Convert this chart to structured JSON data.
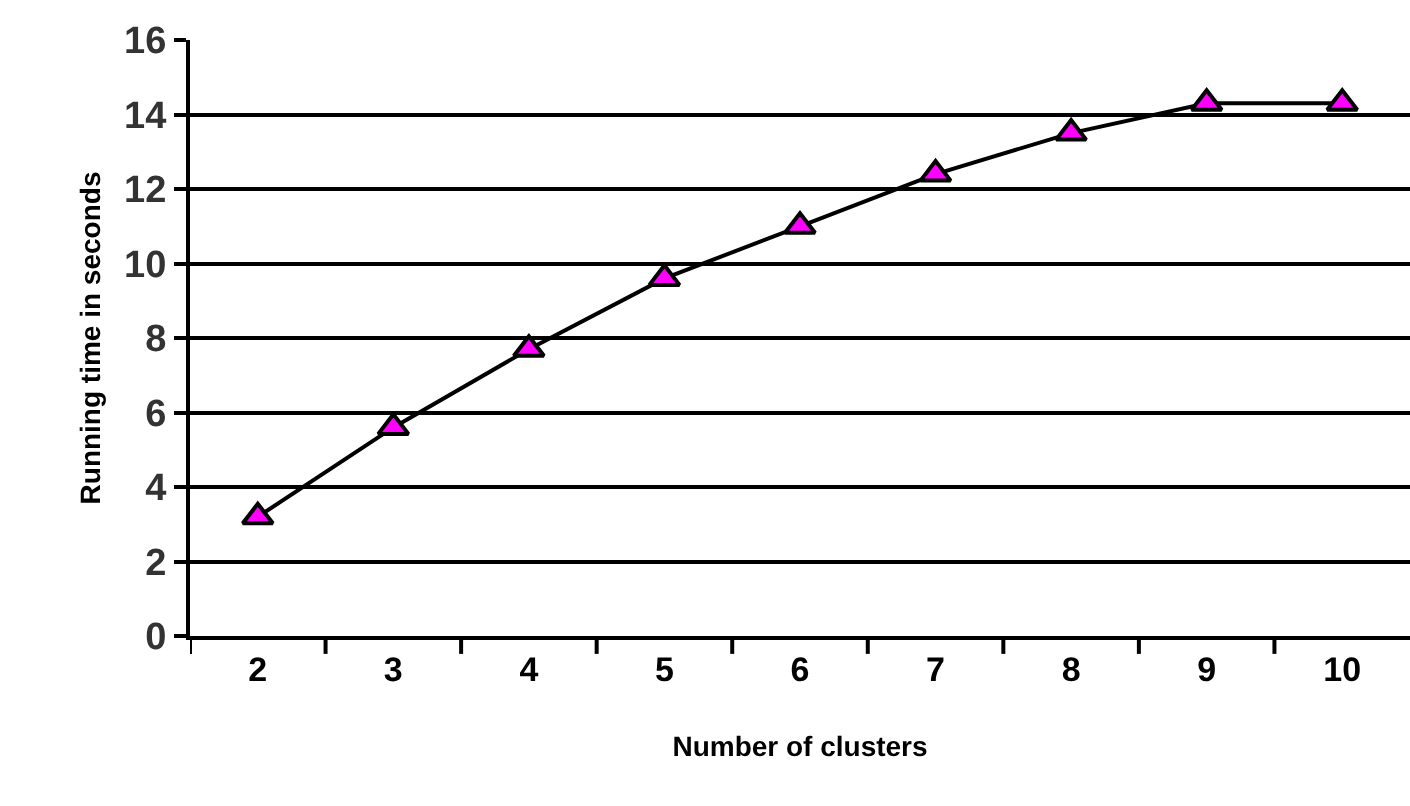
{
  "chart_data": {
    "type": "line",
    "xlabel": "Number of clusters",
    "ylabel": "Running time in seconds",
    "categories": [
      "2",
      "3",
      "4",
      "5",
      "6",
      "7",
      "8",
      "9",
      "10"
    ],
    "series": [
      {
        "color": "#ff00ff",
        "values": [
          3.2,
          5.6,
          7.7,
          9.6,
          11.0,
          12.4,
          13.5,
          14.3,
          14.3
        ]
      }
    ],
    "ylim": [
      0,
      16
    ],
    "yticks": [
      0,
      2,
      4,
      6,
      8,
      10,
      12,
      14,
      16
    ],
    "grid": "y",
    "legend": false,
    "marker": "triangle",
    "line_style": "solid"
  }
}
